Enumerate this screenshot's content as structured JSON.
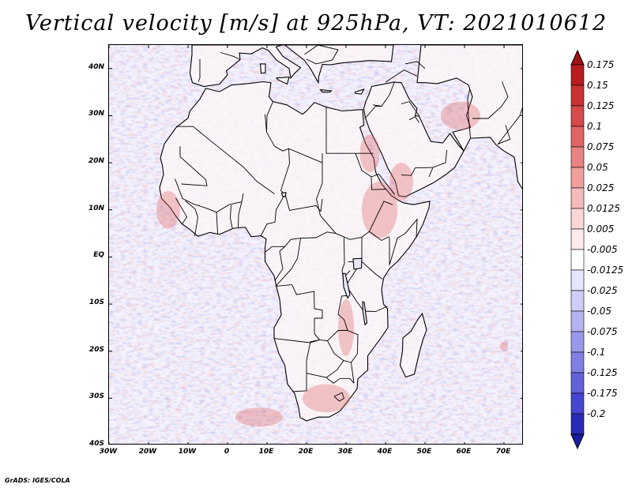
{
  "title": "Vertical velocity [m/s] at 925hPa, VT: 2021010612",
  "credit": "GrADS: IGES/COLA",
  "map": {
    "lon_range": [
      -30,
      75
    ],
    "lat_range": [
      -40,
      45
    ],
    "lat_ticks": [
      {
        "value": 40,
        "label": "40N"
      },
      {
        "value": 30,
        "label": "30N"
      },
      {
        "value": 20,
        "label": "20N"
      },
      {
        "value": 10,
        "label": "10N"
      },
      {
        "value": 0,
        "label": "EQ"
      },
      {
        "value": -10,
        "label": "10S"
      },
      {
        "value": -20,
        "label": "20S"
      },
      {
        "value": -30,
        "label": "30S"
      },
      {
        "value": -40,
        "label": "40S"
      }
    ],
    "lon_ticks": [
      {
        "value": -30,
        "label": "30W"
      },
      {
        "value": -20,
        "label": "20W"
      },
      {
        "value": -10,
        "label": "10W"
      },
      {
        "value": 0,
        "label": "0"
      },
      {
        "value": 10,
        "label": "10E"
      },
      {
        "value": 20,
        "label": "20E"
      },
      {
        "value": 30,
        "label": "30E"
      },
      {
        "value": 40,
        "label": "40E"
      },
      {
        "value": 50,
        "label": "50E"
      },
      {
        "value": 60,
        "label": "60E"
      },
      {
        "value": 70,
        "label": "70E"
      }
    ]
  },
  "colorbar": {
    "levels": [
      {
        "label": "0.175",
        "color": "#b81c1c"
      },
      {
        "label": "0.15",
        "color": "#c83232"
      },
      {
        "label": "0.125",
        "color": "#d54a4a"
      },
      {
        "label": "0.1",
        "color": "#e06464"
      },
      {
        "label": "0.075",
        "color": "#e98282"
      },
      {
        "label": "0.05",
        "color": "#f09e9e"
      },
      {
        "label": "0.025",
        "color": "#f6baba"
      },
      {
        "label": "0.0125",
        "color": "#fbd6d6"
      },
      {
        "label": "0.005",
        "color": "#fdeaea"
      },
      {
        "label": "-0.005",
        "color": "#ffffff"
      },
      {
        "label": "-0.0125",
        "color": "#e6e6fb"
      },
      {
        "label": "-0.025",
        "color": "#cdcdf7"
      },
      {
        "label": "-0.05",
        "color": "#b3b3f2"
      },
      {
        "label": "-0.075",
        "color": "#9999ec"
      },
      {
        "label": "-0.1",
        "color": "#7f7fe4"
      },
      {
        "label": "-0.125",
        "color": "#6262db"
      },
      {
        "label": "-0.175",
        "color": "#4545cf"
      },
      {
        "label": "-0.2",
        "color": "#2a2ab8"
      }
    ],
    "top_color": "#a01414",
    "bottom_color": "#1c1ca0"
  },
  "colors": {
    "land_fill": "#ffffff",
    "ocean_base": "#f1f0fc",
    "positive": "#e06464",
    "negative": "#7878e8",
    "border": "#000000"
  }
}
